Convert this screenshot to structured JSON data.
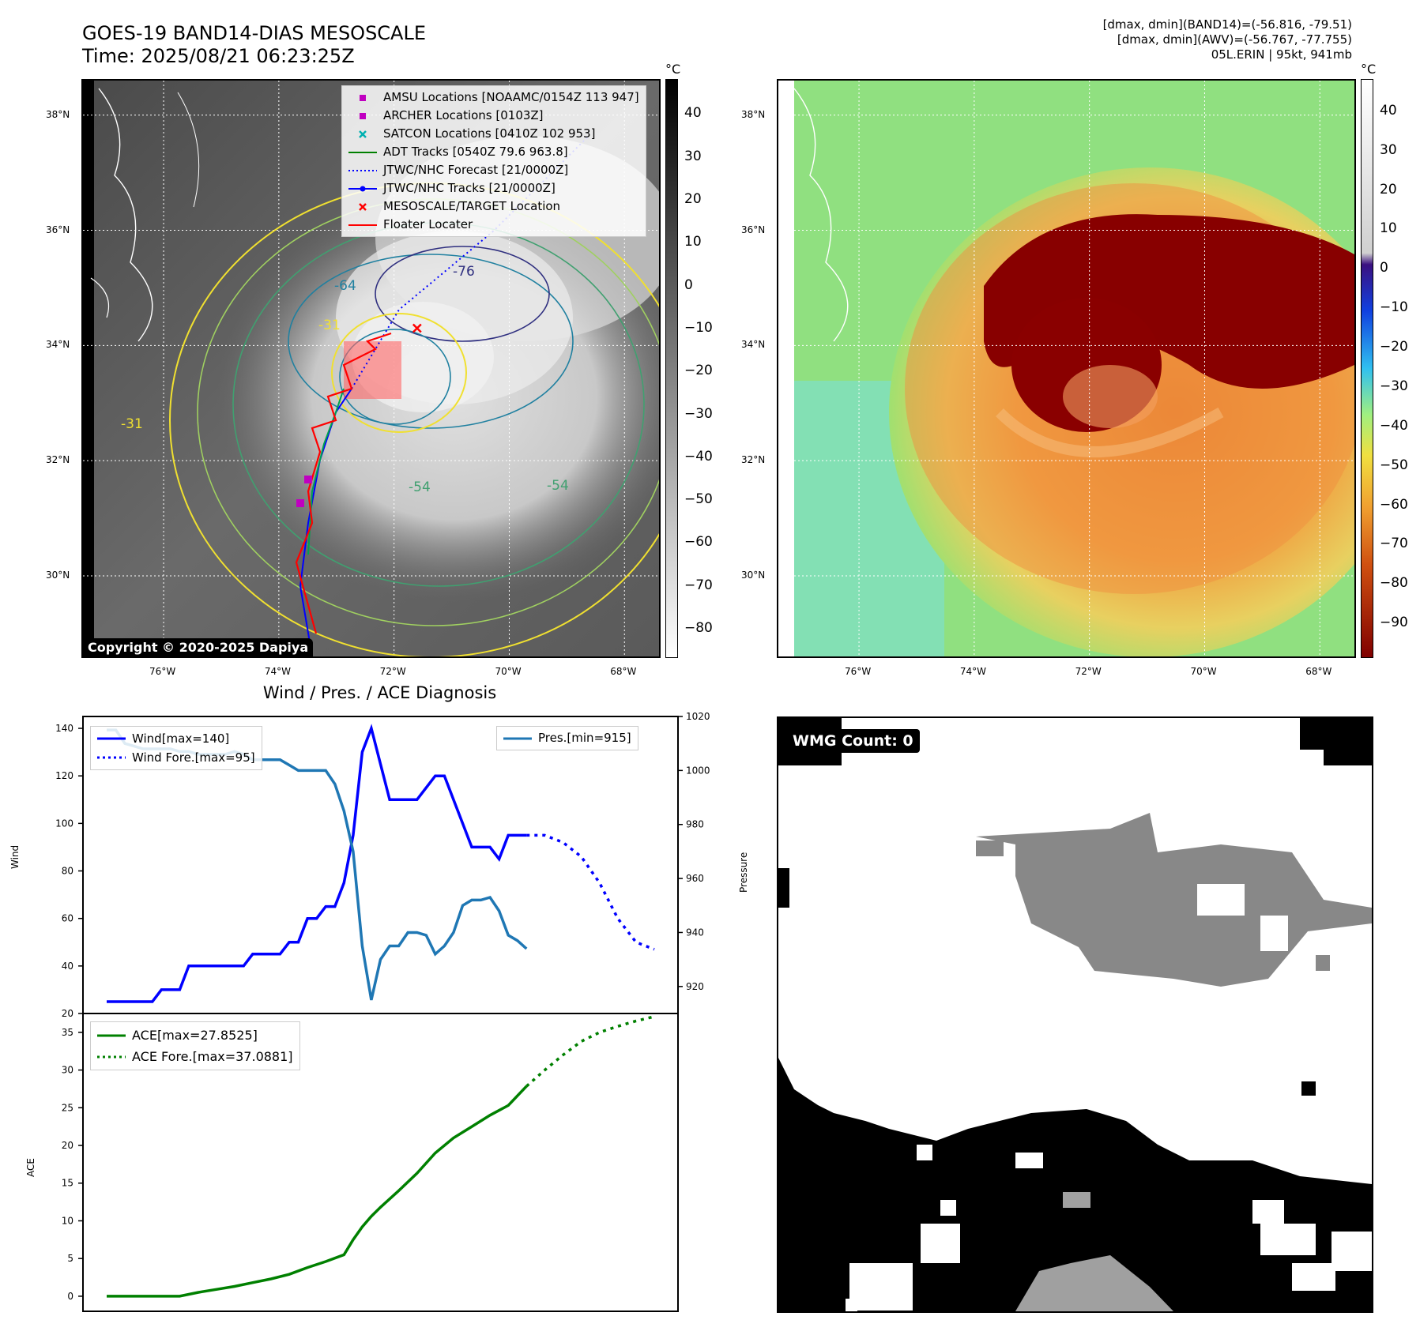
{
  "header": {
    "title_line1": "GOES-19 BAND14-DIAS MESOSCALE",
    "title_line2": "Time: 2025/08/21 06:23:25Z",
    "stats_line1": "[dmax, dmin](BAND14)=(-56.816, -79.51)",
    "stats_line2": "[dmax, dmin](AWV)=(-56.767, -77.755)",
    "stats_line3": "05L.ERIN | 95kt, 941mb"
  },
  "map_axes": {
    "lat_labels": [
      "38°N",
      "36°N",
      "34°N",
      "32°N",
      "30°N"
    ],
    "lon_labels": [
      "76°W",
      "74°W",
      "72°W",
      "70°W",
      "68°W"
    ],
    "lat_values": [
      38,
      36,
      34,
      32,
      30
    ],
    "lon_values": [
      -76,
      -74,
      -72,
      -70,
      -68
    ],
    "lat_range": [
      28.6,
      38.6
    ],
    "lon_range": [
      -77.4,
      -67.4
    ]
  },
  "ir_panel": {
    "colorbar_unit": "°C",
    "colorbar_ticks": [
      "40",
      "30",
      "20",
      "10",
      "0",
      "−10",
      "−20",
      "−30",
      "−40",
      "−50",
      "−60",
      "−70",
      "−80"
    ],
    "colorbar_range": [
      48,
      -87
    ],
    "copyright": "Copyright © 2020-2025 Dapiya",
    "contour_labels": [
      "-64",
      "-76",
      "-31",
      "-54",
      "-54",
      "-31"
    ],
    "legend": [
      {
        "label": "AMSU Locations [NOAAMC/0154Z 113 947]",
        "color": "#c000c0",
        "marker": "square"
      },
      {
        "label": "ARCHER Locations [0103Z]",
        "color": "#c000c0",
        "marker": "square"
      },
      {
        "label": "SATCON Locations [0410Z 102 953]",
        "color": "#00b0b0",
        "marker": "x"
      },
      {
        "label": "ADT Tracks [0540Z 79.6 963.8]",
        "color": "#008000",
        "marker": "line"
      },
      {
        "label": "JTWC/NHC Forecast [21/0000Z]",
        "color": "#0000ff",
        "marker": "dotted"
      },
      {
        "label": "JTWC/NHC Tracks [21/0000Z]",
        "color": "#0000ff",
        "marker": "line-dot"
      },
      {
        "label": "MESOSCALE/TARGET Location",
        "color": "#ff0000",
        "marker": "x"
      },
      {
        "label": "Floater Locater",
        "color": "#ff0000",
        "marker": "line"
      }
    ],
    "target_location": {
      "lat": 34.3,
      "lon": -71.6
    }
  },
  "awv_panel": {
    "colorbar_unit": "°C",
    "colorbar_ticks": [
      "40",
      "30",
      "20",
      "10",
      "0",
      "−10",
      "−20",
      "−30",
      "−40",
      "−50",
      "−60",
      "−70",
      "−80",
      "−90"
    ],
    "colorbar_range": [
      48,
      -99
    ]
  },
  "diag_panel": {
    "title": "Wind / Pres. / ACE Diagnosis",
    "wind_axis_label": "Wind",
    "pres_axis_label": "Pressure",
    "ace_axis_label": "ACE",
    "legend_wind": "Wind[max=140]",
    "legend_wind_fore": "Wind Fore.[max=95]",
    "legend_pres": "Pres.[min=915]",
    "legend_ace": "ACE[max=27.8525]",
    "legend_ace_fore": "ACE Fore.[max=37.0881]",
    "wind_ticks": [
      "140",
      "120",
      "100",
      "80",
      "60",
      "40",
      "20"
    ],
    "pres_ticks": [
      "1020",
      "1000",
      "980",
      "960",
      "940",
      "920"
    ],
    "ace_ticks": [
      "35",
      "30",
      "25",
      "20",
      "15",
      "10",
      "5",
      "0"
    ]
  },
  "wmg_panel": {
    "badge": "WMG Count: 0"
  },
  "chart_data": [
    {
      "type": "line",
      "title": "Wind / Pres. / ACE Diagnosis",
      "ylabel": "Wind",
      "ylim": [
        20,
        145
      ],
      "xlim": [
        0,
        60
      ],
      "series": [
        {
          "name": "Wind[max=140]",
          "color": "#0000ff",
          "x": [
            0,
            1,
            2,
            3,
            4,
            5,
            6,
            7,
            8,
            9,
            10,
            11,
            12,
            13,
            14,
            15,
            16,
            17,
            18,
            19,
            20,
            21,
            22,
            23,
            24,
            25,
            26,
            27,
            28,
            29,
            30,
            31,
            32,
            33,
            34,
            35,
            36,
            37,
            38,
            39,
            40,
            41,
            42,
            43,
            44,
            45,
            46
          ],
          "values": [
            25,
            25,
            25,
            25,
            25,
            25,
            30,
            30,
            30,
            40,
            40,
            40,
            40,
            40,
            40,
            40,
            45,
            45,
            45,
            45,
            50,
            50,
            60,
            60,
            65,
            65,
            75,
            95,
            130,
            140,
            125,
            110,
            110,
            110,
            110,
            115,
            120,
            120,
            110,
            100,
            90,
            90,
            90,
            85,
            95,
            95,
            95
          ]
        },
        {
          "name": "Wind Fore.[max=95]",
          "color": "#0000ff",
          "dotted": true,
          "x": [
            46,
            48,
            50,
            52,
            54,
            56,
            58,
            60
          ],
          "values": [
            95,
            95,
            92,
            86,
            75,
            60,
            50,
            47
          ]
        }
      ]
    },
    {
      "type": "line",
      "ylabel": "Pressure",
      "ylim": [
        910,
        1020
      ],
      "xlim": [
        0,
        60
      ],
      "series": [
        {
          "name": "Pres.[min=915]",
          "color": "#1f77b4",
          "x": [
            0,
            1,
            2,
            3,
            4,
            5,
            6,
            7,
            8,
            9,
            10,
            11,
            12,
            13,
            14,
            15,
            16,
            17,
            18,
            19,
            20,
            21,
            22,
            23,
            24,
            25,
            26,
            27,
            28,
            29,
            30,
            31,
            32,
            33,
            34,
            35,
            36,
            37,
            38,
            39,
            40,
            41,
            42,
            43,
            44,
            45,
            46
          ],
          "values": [
            1015,
            1015,
            1010,
            1009,
            1008,
            1008,
            1008,
            1008,
            1007,
            1007,
            1006,
            1006,
            1006,
            1006,
            1007,
            1006,
            1004,
            1004,
            1004,
            1004,
            1002,
            1000,
            1000,
            1000,
            1000,
            995,
            985,
            970,
            935,
            915,
            930,
            935,
            935,
            940,
            940,
            939,
            932,
            935,
            940,
            950,
            952,
            952,
            953,
            948,
            939,
            937,
            934
          ]
        }
      ]
    },
    {
      "type": "line",
      "ylabel": "ACE",
      "ylim": [
        -2,
        37.5
      ],
      "xlim": [
        0,
        60
      ],
      "series": [
        {
          "name": "ACE[max=27.8525]",
          "color": "#008000",
          "x": [
            0,
            2,
            4,
            6,
            8,
            10,
            12,
            14,
            16,
            18,
            20,
            22,
            24,
            26,
            27,
            28,
            29,
            30,
            32,
            34,
            36,
            38,
            40,
            42,
            44,
            46
          ],
          "values": [
            0,
            0,
            0,
            0,
            0,
            0.5,
            0.9,
            1.3,
            1.8,
            2.3,
            2.9,
            3.8,
            4.6,
            5.5,
            7.5,
            9.2,
            10.6,
            11.8,
            14,
            16.3,
            19,
            21,
            22.5,
            24,
            25.3,
            27.85
          ]
        },
        {
          "name": "ACE Fore.[max=37.0881]",
          "color": "#008000",
          "dotted": true,
          "x": [
            46,
            48,
            50,
            52,
            54,
            56,
            58,
            60
          ],
          "values": [
            27.85,
            30,
            32,
            33.8,
            35,
            35.8,
            36.5,
            37.09
          ]
        }
      ]
    }
  ]
}
